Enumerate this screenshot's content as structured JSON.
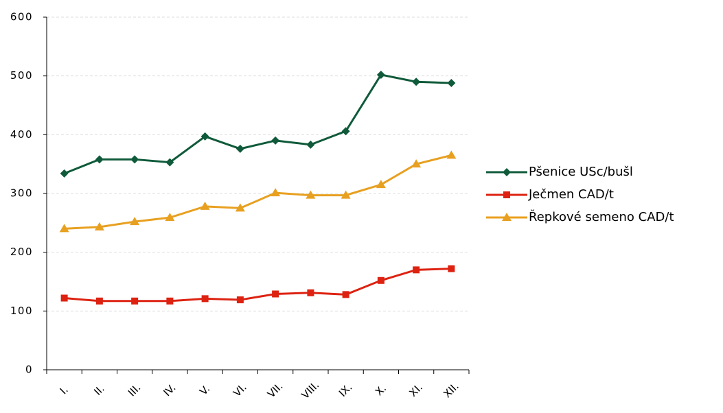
{
  "chart_data": {
    "type": "line",
    "categories": [
      "I.",
      "II.",
      "III.",
      "IV.",
      "V.",
      "VI.",
      "VII.",
      "VIII.",
      "IX.",
      "X.",
      "XI.",
      "XII."
    ],
    "series": [
      {
        "name": "Pšenice USc/bušl",
        "color": "#0f5a3a",
        "marker": "diamond",
        "values": [
          334,
          358,
          358,
          353,
          397,
          376,
          390,
          383,
          406,
          502,
          490,
          488
        ]
      },
      {
        "name": "Ječmen CAD/t",
        "color": "#dd2211",
        "marker": "square",
        "values": [
          122,
          117,
          117,
          117,
          121,
          119,
          129,
          131,
          128,
          152,
          170,
          172
        ]
      },
      {
        "name": "Řepkové semeno CAD/t",
        "color": "#e8a020",
        "marker": "triangle",
        "values": [
          240,
          243,
          252,
          259,
          278,
          275,
          301,
          297,
          297,
          315,
          350,
          365
        ]
      }
    ],
    "ylim": [
      0,
      600
    ],
    "yticks": [
      0,
      100,
      200,
      300,
      400,
      500,
      600
    ],
    "grid": true,
    "legend": "right"
  }
}
